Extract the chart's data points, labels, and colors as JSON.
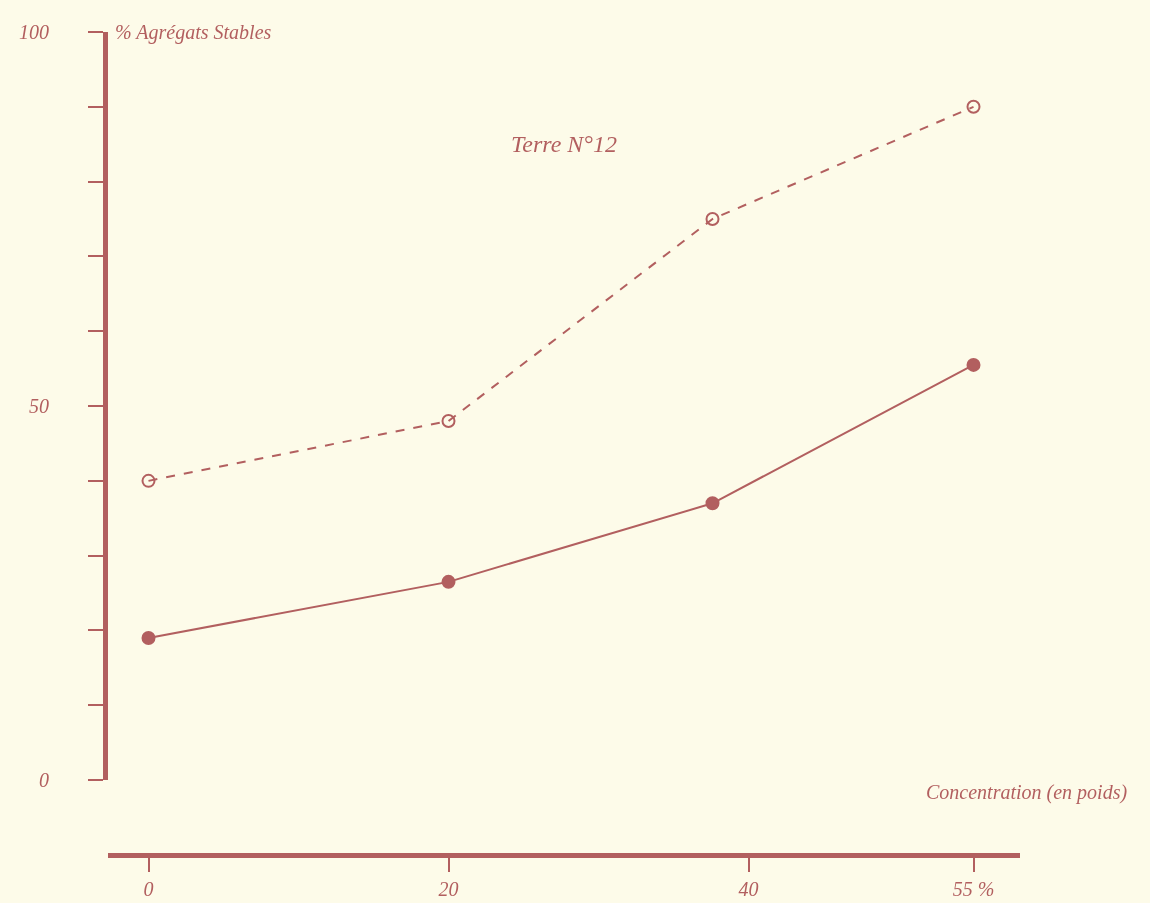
{
  "chart_data": {
    "type": "line",
    "title": "Terre N°12",
    "ylabel": "% Agrégats Stables",
    "xlabel": "Concentration (en poids)",
    "xlim": [
      -2.7,
      58.1
    ],
    "xticks": [
      0,
      20,
      40,
      {
        "value": 55,
        "label": "55 %"
      }
    ],
    "ylim": [
      0,
      100
    ],
    "yticks": [
      0,
      {
        "value": 10,
        "label": null
      },
      {
        "value": 20,
        "label": null
      },
      {
        "value": 30,
        "label": null
      },
      {
        "value": 40,
        "label": null
      },
      50,
      {
        "value": 60,
        "label": null
      },
      {
        "value": 70,
        "label": null
      },
      {
        "value": 80,
        "label": null
      },
      {
        "value": 90,
        "label": null
      },
      100
    ],
    "grid": false,
    "series": [
      {
        "color": "#b25f5f",
        "x": [
          0,
          20,
          37.6,
          55
        ],
        "values": [
          40,
          48,
          75,
          90
        ],
        "marker": "circle",
        "line_style": "dashed"
      },
      {
        "color": "#b25f5f",
        "x": [
          0,
          20,
          37.6,
          55
        ],
        "values": [
          19,
          26.5,
          37,
          55.5
        ],
        "marker": "circle",
        "line_style": "solid"
      }
    ]
  }
}
